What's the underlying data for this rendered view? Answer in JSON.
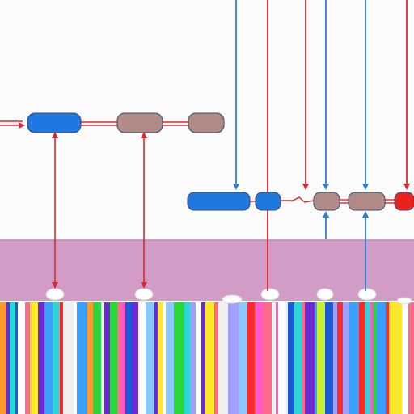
{
  "colors": {
    "background": "#fcfcfc",
    "band": "#d39cc6",
    "band_edge": "#b987b0",
    "blue": "#1f78e0",
    "brown": "#b08a86",
    "red_node": "#e8231f",
    "red_line": "#e0262c",
    "blue_line": "#2b7fd6",
    "node_stroke": "#3a4a66",
    "bump": "#ffffff"
  },
  "top_row": {
    "nodes": [
      "blue",
      "brown",
      "brown"
    ],
    "incoming_arrow": true
  },
  "mid_row": {
    "nodes": [
      "blue",
      "blue",
      "brown",
      "brown",
      "red"
    ]
  },
  "stripe_palette": [
    "#ff2a2a",
    "#ffe82a",
    "#3aa0ff",
    "#6b2ad6",
    "#2ad63a",
    "#ff5ac8",
    "#ffffff",
    "#2ad6d6",
    "#ff9a2a",
    "#8ac8ff",
    "#c8f02a",
    "#ff6a8a",
    "#a0a0ff",
    "#1e5ad6",
    "#f0f0f0"
  ]
}
